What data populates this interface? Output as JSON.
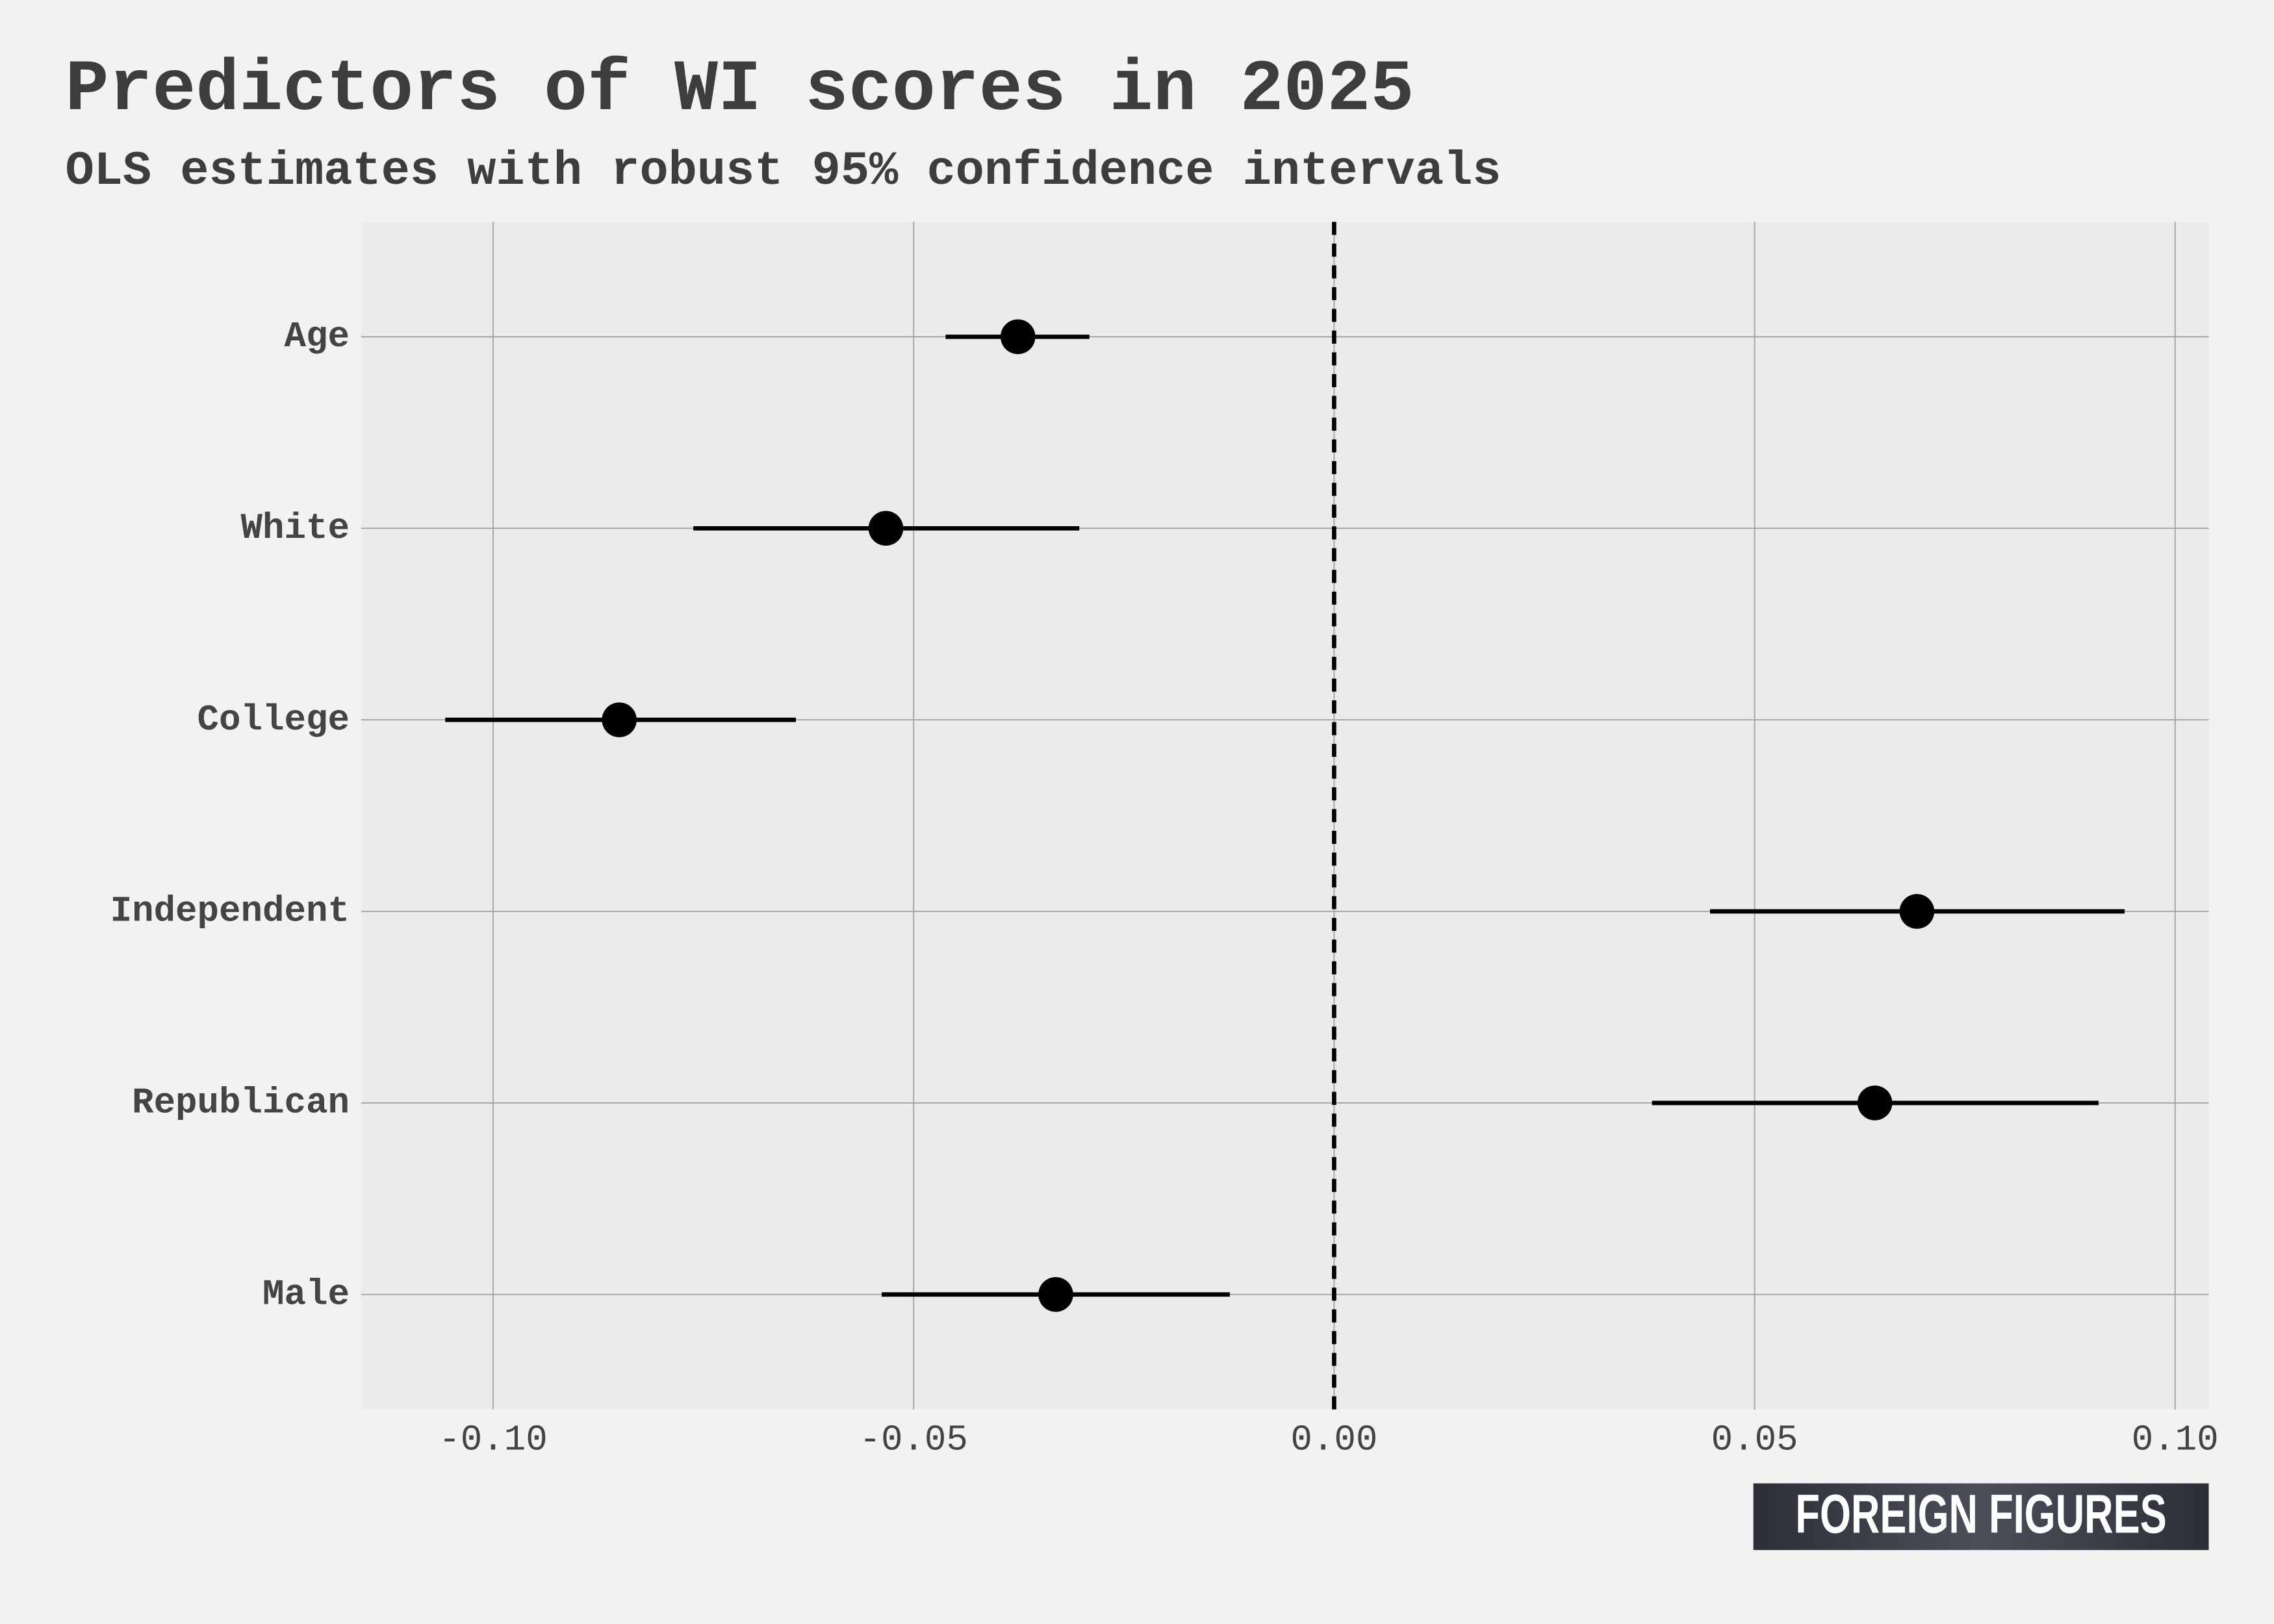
{
  "chart_data": {
    "type": "dot",
    "title": "Predictors of WI scores in 2025",
    "subtitle": "OLS estimates with robust 95% confidence intervals",
    "categories": [
      "Age",
      "White",
      "College",
      "Independent",
      "Republican",
      "Male"
    ],
    "values": [
      -0.0376,
      -0.0533,
      -0.085,
      0.0693,
      0.0643,
      -0.0331
    ],
    "ci_low": [
      -0.0462,
      -0.0762,
      -0.1057,
      0.0447,
      0.0378,
      -0.0538
    ],
    "ci_high": [
      -0.0291,
      -0.0303,
      -0.064,
      0.094,
      0.0909,
      -0.0124
    ],
    "color": "#000000",
    "xlim": [
      -0.1157,
      0.104
    ],
    "xticks": [
      {
        "value": -0.1,
        "label": "-0.10"
      },
      -0.05,
      {
        "value": 0,
        "label": "0.00"
      },
      0.05,
      {
        "value": 0.1,
        "label": "0.10"
      }
    ],
    "grid": true,
    "logo": "FOREIGN FIGURES"
  }
}
